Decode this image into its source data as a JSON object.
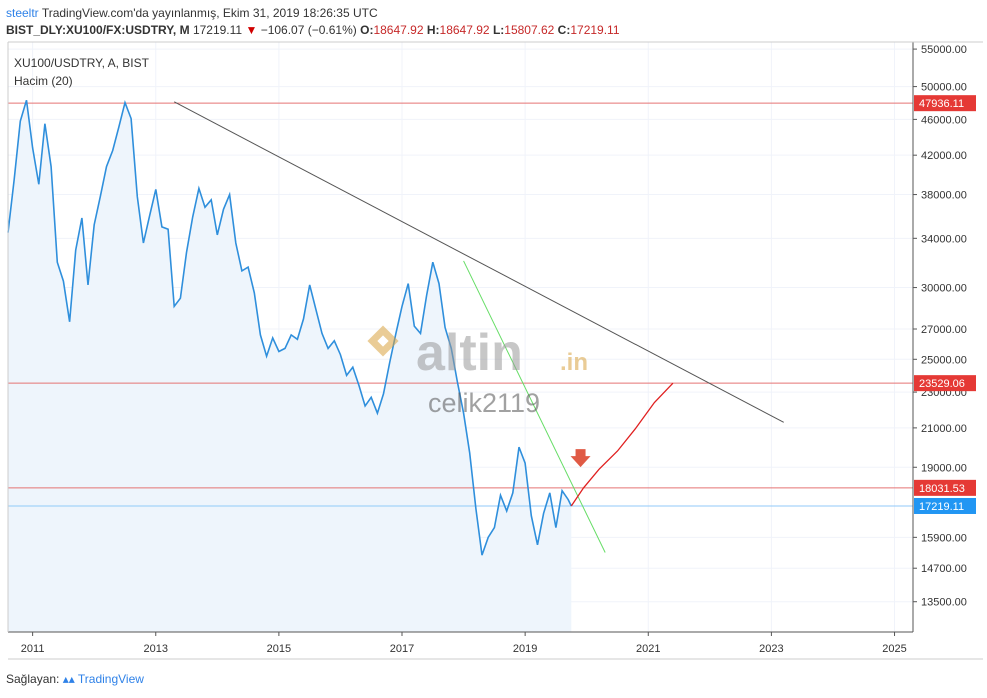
{
  "header": {
    "brand": "steeltr",
    "published": "TradingView.com'da yayınlanmış, Ekim 31, 2019 18:26:35 UTC"
  },
  "ohlc": {
    "symbol": "BIST_DLY:XU100/FX:USDTRY, M",
    "last": "17219.11",
    "change": "−106.07 (−0.61%)",
    "o_label": "O:",
    "o": "18647.92",
    "h_label": "H:",
    "h": "18647.92",
    "l_label": "L:",
    "l": "15807.62",
    "c_label": "C:",
    "c": "17219.11"
  },
  "legend": {
    "series": "XU100/USDTRY, A, BIST",
    "volume": "Hacim (20)"
  },
  "watermark": {
    "logo": "altin",
    "logo_suffix": ".in",
    "user": "celik2119"
  },
  "footer": {
    "label": "Sağlayan:",
    "provider": "TradingView"
  },
  "colors": {
    "price_line": "#2f8fdc",
    "area_fill": "#eef5fc",
    "level_line": "#e57373",
    "level_tag": "#e53935",
    "current_tag": "#2196f3",
    "trendline": "#555555",
    "support_trend": "#66dd66",
    "projection": "#e02020",
    "arrow": "#e05a45"
  },
  "chart_data": {
    "type": "line",
    "title": "XU100/USDTRY, A, BIST",
    "x_unit": "year",
    "y_scale": "log",
    "ylim": [
      12500,
      56000
    ],
    "xlim": [
      2010.6,
      2025.3
    ],
    "y_ticks": [
      13500,
      14700,
      15900,
      17219.11,
      19000,
      21000,
      23000,
      25000,
      27000,
      30000,
      34000,
      38000,
      42000,
      46000,
      50000,
      55000
    ],
    "y_tick_labels": [
      "13500.00",
      "14700.00",
      "15900.00",
      "17219.11",
      "19000.00",
      "21000.00",
      "23000.00",
      "25000.00",
      "27000.00",
      "30000.00",
      "34000.00",
      "38000.00",
      "42000.00",
      "46000.00",
      "50000.00",
      "55000.00"
    ],
    "x_ticks": [
      2011,
      2013,
      2015,
      2017,
      2019,
      2021,
      2023,
      2025
    ],
    "x_tick_labels": [
      "2011",
      "2013",
      "2015",
      "2017",
      "2019",
      "2021",
      "2023",
      "2025"
    ],
    "horizontal_levels": [
      {
        "value": 47936.11,
        "label": "47936.11",
        "kind": "level"
      },
      {
        "value": 23529.06,
        "label": "23529.06",
        "kind": "level"
      },
      {
        "value": 18031.53,
        "label": "18031.53",
        "kind": "level"
      },
      {
        "value": 17219.11,
        "label": "17219.11",
        "kind": "current"
      }
    ],
    "series": [
      {
        "x": [
          2010.6,
          2010.7,
          2010.8,
          2010.9,
          2011.0,
          2011.1,
          2011.2,
          2011.3,
          2011.4,
          2011.5,
          2011.6,
          2011.7,
          2011.8,
          2011.9,
          2012.0,
          2012.1,
          2012.2,
          2012.3,
          2012.4,
          2012.5,
          2012.6,
          2012.7,
          2012.8,
          2012.9,
          2013.0,
          2013.1,
          2013.2,
          2013.3,
          2013.4,
          2013.5,
          2013.6,
          2013.7,
          2013.8,
          2013.9,
          2014.0,
          2014.1,
          2014.2,
          2014.3,
          2014.4,
          2014.5,
          2014.6,
          2014.7,
          2014.8,
          2014.9,
          2015.0,
          2015.1,
          2015.2,
          2015.3,
          2015.4,
          2015.5,
          2015.6,
          2015.7,
          2015.8,
          2015.9,
          2016.0,
          2016.1,
          2016.2,
          2016.3,
          2016.4,
          2016.5,
          2016.6,
          2016.7,
          2016.8,
          2016.9,
          2017.0,
          2017.1,
          2017.2,
          2017.3,
          2017.4,
          2017.5,
          2017.6,
          2017.7,
          2017.8,
          2017.9,
          2018.0,
          2018.1,
          2018.2,
          2018.3,
          2018.4,
          2018.5,
          2018.6,
          2018.7,
          2018.8,
          2018.9,
          2019.0,
          2019.1,
          2019.2,
          2019.3,
          2019.4,
          2019.5,
          2019.6,
          2019.7,
          2019.75
        ],
        "y": [
          34500,
          39500,
          45800,
          48300,
          42800,
          39000,
          45500,
          40800,
          32000,
          30500,
          27500,
          33000,
          35800,
          30200,
          35200,
          37800,
          40800,
          42500,
          45100,
          48000,
          46100,
          37800,
          33600,
          36000,
          38500,
          35000,
          34800,
          28600,
          29200,
          32800,
          35900,
          38600,
          36800,
          37500,
          34300,
          36600,
          38000,
          33600,
          31300,
          31600,
          29600,
          26600,
          25200,
          26400,
          25500,
          25700,
          26600,
          26300,
          27700,
          30200,
          28400,
          26700,
          25700,
          26200,
          25300,
          24000,
          24500,
          23400,
          22200,
          22700,
          21800,
          22900,
          24800,
          26700,
          28600,
          30300,
          27200,
          26700,
          29400,
          32000,
          30300,
          27100,
          25700,
          23600,
          21800,
          19700,
          17100,
          15200,
          15900,
          16300,
          17700,
          17000,
          17800,
          20000,
          19200,
          16800,
          15600,
          16900,
          17800,
          16300,
          17900,
          17500,
          17219.11
        ]
      }
    ],
    "annotations": {
      "resistance_trendline": {
        "x": [
          2013.3,
          2023.2
        ],
        "y": [
          48100,
          21300
        ]
      },
      "support_trendline": {
        "x": [
          2018.0,
          2020.3
        ],
        "y": [
          32100,
          15300
        ]
      },
      "projection": {
        "x": [
          2019.75,
          2019.95,
          2020.2,
          2020.5,
          2020.8,
          2021.1,
          2021.4
        ],
        "y": [
          17219.11,
          18031.53,
          18900,
          19800,
          21000,
          22400,
          23529.06
        ]
      },
      "arrow_down": {
        "x": 2019.9,
        "y": 19200
      }
    }
  }
}
